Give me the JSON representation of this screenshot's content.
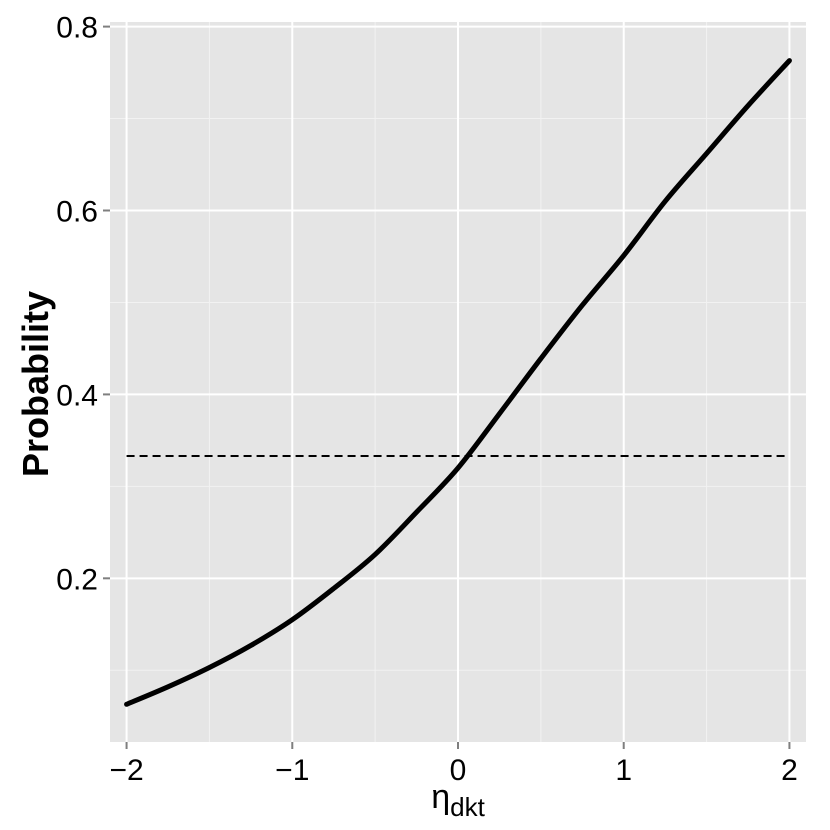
{
  "chart_data": {
    "type": "line",
    "title": "",
    "xlabel": "η",
    "xlabel_subscript": "dkt",
    "ylabel": "Probability",
    "xlim": [
      -2.1,
      2.1
    ],
    "ylim": [
      0.022,
      0.805
    ],
    "x_ticks": [
      -2,
      -1,
      0,
      1,
      2
    ],
    "x_tick_labels": [
      "−2",
      "−1",
      "0",
      "1",
      "2"
    ],
    "y_ticks": [
      0.2,
      0.4,
      0.6,
      0.8
    ],
    "y_tick_labels": [
      "0.2",
      "0.4",
      "0.6",
      "0.8"
    ],
    "grid": true,
    "background": "#e5e5e5",
    "series": [
      {
        "style": "solid",
        "color": "#000000",
        "x": [
          -2.0,
          -1.75,
          -1.5,
          -1.25,
          -1.0,
          -0.75,
          -0.5,
          -0.25,
          0.0,
          0.25,
          0.5,
          0.75,
          1.0,
          1.25,
          1.5,
          1.75,
          2.0
        ],
        "y": [
          0.063,
          0.082,
          0.103,
          0.127,
          0.155,
          0.189,
          0.226,
          0.272,
          0.32,
          0.379,
          0.439,
          0.497,
          0.551,
          0.61,
          0.662,
          0.714,
          0.763
        ]
      },
      {
        "style": "dashed",
        "color": "#000000",
        "x": [
          -2.0,
          2.0
        ],
        "y": [
          0.333,
          0.333
        ]
      }
    ]
  }
}
